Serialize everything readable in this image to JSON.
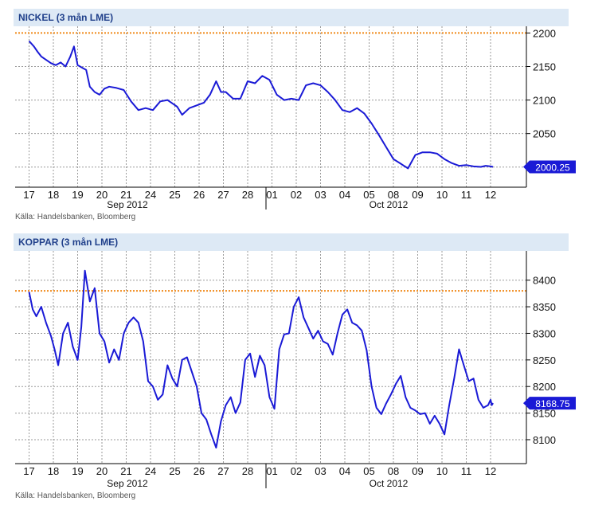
{
  "chart_data": [
    {
      "type": "line",
      "title": "NICKEL (3 mån LME)",
      "source": "Källa: Handelsbanken, Bloomberg",
      "categories": [
        "17",
        "18",
        "19",
        "20",
        "21",
        "24",
        "25",
        "26",
        "27",
        "28",
        "01",
        "02",
        "03",
        "04",
        "05",
        "08",
        "09",
        "10",
        "11",
        "12"
      ],
      "months": [
        "Sep 2012",
        "Oct 2012"
      ],
      "ylim": [
        1970,
        2210
      ],
      "yticks": [
        2000,
        2050,
        2100,
        2150,
        2200
      ],
      "reference_line": 2200,
      "last_value": 2000.25,
      "last_label": "2000.25",
      "grid": true,
      "series": [
        {
          "color": "#1a1ad6",
          "x": [
            0,
            0.2,
            0.35,
            0.5,
            0.7,
            0.9,
            1.1,
            1.3,
            1.5,
            1.7,
            1.85,
            2.0,
            2.2,
            2.35,
            2.5,
            2.7,
            2.9,
            3.1,
            3.3,
            3.6,
            3.9,
            4.2,
            4.5,
            4.8,
            5.1,
            5.4,
            5.7,
            5.9,
            6.1,
            6.3,
            6.6,
            6.9,
            7.2,
            7.45,
            7.7,
            7.9,
            8.1,
            8.4,
            8.7,
            9.0,
            9.3,
            9.6,
            9.9,
            10.2,
            10.5,
            10.8,
            11.1,
            11.4,
            11.7,
            12.0,
            12.3,
            12.6,
            12.9,
            13.2,
            13.5,
            13.8,
            14.1,
            14.4,
            14.7,
            15.0,
            15.3,
            15.6,
            15.9,
            16.2,
            16.5,
            16.8,
            17.1,
            17.4,
            17.7,
            18.0,
            18.3,
            18.6,
            18.8,
            19.0,
            19.1
          ],
          "y": [
            2188,
            2180,
            2172,
            2165,
            2160,
            2155,
            2152,
            2156,
            2150,
            2165,
            2180,
            2152,
            2148,
            2145,
            2120,
            2112,
            2108,
            2117,
            2120,
            2118,
            2115,
            2098,
            2085,
            2088,
            2085,
            2098,
            2100,
            2095,
            2090,
            2078,
            2088,
            2092,
            2096,
            2108,
            2128,
            2112,
            2112,
            2102,
            2102,
            2128,
            2125,
            2136,
            2130,
            2108,
            2100,
            2102,
            2100,
            2122,
            2125,
            2122,
            2112,
            2100,
            2085,
            2082,
            2088,
            2080,
            2065,
            2048,
            2030,
            2012,
            2005,
            1998,
            2018,
            2022,
            2022,
            2020,
            2012,
            2006,
            2002,
            2003,
            2001,
            2000.25,
            2002,
            2001,
            2000.25
          ]
        }
      ]
    },
    {
      "type": "line",
      "title": "KOPPAR (3 mån LME)",
      "source": "Källa: Handelsbanken, Bloomberg",
      "categories": [
        "17",
        "18",
        "19",
        "20",
        "21",
        "24",
        "25",
        "26",
        "27",
        "28",
        "01",
        "02",
        "03",
        "04",
        "05",
        "08",
        "09",
        "10",
        "11",
        "12"
      ],
      "months": [
        "Sep 2012",
        "Oct 2012"
      ],
      "ylim": [
        8055,
        8455
      ],
      "yticks": [
        8100,
        8150,
        8200,
        8250,
        8300,
        8350,
        8400
      ],
      "reference_line": 8380,
      "last_value": 8168.75,
      "last_label": "8168.75",
      "grid": true,
      "series": [
        {
          "color": "#1a1ad6",
          "x": [
            0,
            0.15,
            0.3,
            0.5,
            0.7,
            0.9,
            1.05,
            1.2,
            1.4,
            1.6,
            1.8,
            2.0,
            2.15,
            2.3,
            2.5,
            2.7,
            2.9,
            3.1,
            3.3,
            3.5,
            3.7,
            3.9,
            4.1,
            4.3,
            4.5,
            4.7,
            4.9,
            5.1,
            5.3,
            5.5,
            5.7,
            5.9,
            6.1,
            6.3,
            6.5,
            6.7,
            6.9,
            7.1,
            7.3,
            7.5,
            7.7,
            7.9,
            8.1,
            8.3,
            8.5,
            8.7,
            8.9,
            9.1,
            9.3,
            9.5,
            9.7,
            9.9,
            10.1,
            10.3,
            10.5,
            10.7,
            10.9,
            11.1,
            11.3,
            11.5,
            11.7,
            11.9,
            12.1,
            12.3,
            12.5,
            12.7,
            12.9,
            13.1,
            13.3,
            13.5,
            13.7,
            13.9,
            14.1,
            14.3,
            14.5,
            14.7,
            14.9,
            15.1,
            15.3,
            15.5,
            15.7,
            15.9,
            16.1,
            16.3,
            16.5,
            16.7,
            16.9,
            17.1,
            17.3,
            17.5,
            17.7,
            17.9,
            18.1,
            18.3,
            18.5,
            18.7,
            18.9,
            19.0,
            19.05,
            19.1
          ],
          "y": [
            8378,
            8345,
            8332,
            8350,
            8320,
            8295,
            8270,
            8240,
            8300,
            8320,
            8275,
            8250,
            8312,
            8418,
            8360,
            8385,
            8300,
            8285,
            8245,
            8270,
            8250,
            8300,
            8320,
            8330,
            8320,
            8285,
            8210,
            8200,
            8175,
            8185,
            8240,
            8215,
            8200,
            8250,
            8255,
            8228,
            8200,
            8150,
            8138,
            8110,
            8085,
            8135,
            8165,
            8180,
            8150,
            8170,
            8250,
            8262,
            8218,
            8258,
            8240,
            8180,
            8158,
            8270,
            8298,
            8300,
            8350,
            8368,
            8330,
            8310,
            8290,
            8305,
            8285,
            8280,
            8260,
            8300,
            8335,
            8345,
            8320,
            8315,
            8305,
            8268,
            8200,
            8160,
            8148,
            8168,
            8185,
            8205,
            8220,
            8180,
            8160,
            8155,
            8148,
            8150,
            8130,
            8145,
            8130,
            8110,
            8165,
            8215,
            8270,
            8240,
            8210,
            8215,
            8175,
            8160,
            8165,
            8175,
            8165,
            8168.75
          ]
        }
      ]
    }
  ]
}
